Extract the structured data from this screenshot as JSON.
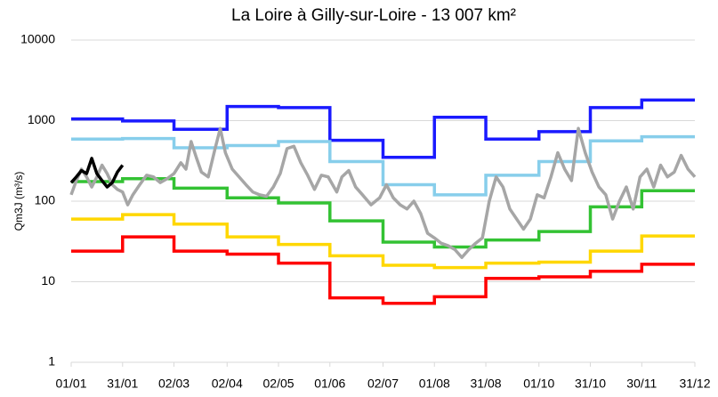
{
  "chart_data": {
    "type": "line",
    "title": "La Loire à Gilly-sur-Loire - 13 007 km²",
    "y_label": "Qm3J (m³/s)",
    "log_y": true,
    "grid": true,
    "xlim": [
      0,
      364
    ],
    "ylim": [
      1,
      10000
    ],
    "yticks": [
      1,
      10,
      100,
      1000,
      10000
    ],
    "xticks": [
      {
        "value": 0,
        "label": "01/01"
      },
      {
        "value": 30,
        "label": "31/01"
      },
      {
        "value": 60,
        "label": "02/03"
      },
      {
        "value": 91,
        "label": "02/04"
      },
      {
        "value": 121,
        "label": "02/05"
      },
      {
        "value": 151,
        "label": "01/06"
      },
      {
        "value": 182,
        "label": "02/07"
      },
      {
        "value": 212,
        "label": "01/08"
      },
      {
        "value": 242,
        "label": "31/08"
      },
      {
        "value": 273,
        "label": "01/10"
      },
      {
        "value": 303,
        "label": "31/10"
      },
      {
        "value": 333,
        "label": "30/11"
      },
      {
        "value": 364,
        "label": "31/12"
      }
    ],
    "step_x": [
      0,
      30,
      60,
      91,
      121,
      151,
      182,
      212,
      242,
      273,
      303,
      333
    ],
    "step_series": [
      {
        "color": "#1a1aff",
        "values": [
          1050,
          990,
          780,
          1500,
          1450,
          570,
          350,
          1100,
          590,
          730,
          1450,
          1800
        ]
      },
      {
        "color": "#87ceeb",
        "values": [
          590,
          600,
          460,
          490,
          550,
          310,
          160,
          120,
          210,
          310,
          560,
          630
        ]
      },
      {
        "color": "#33c233",
        "values": [
          175,
          190,
          145,
          110,
          95,
          57,
          31,
          27,
          33,
          42,
          85,
          135
        ]
      },
      {
        "color": "#ffd700",
        "values": [
          60,
          68,
          52,
          36,
          29,
          21,
          16,
          15,
          17,
          17.5,
          24,
          37
        ]
      },
      {
        "color": "#ff0000",
        "values": [
          24,
          36,
          24,
          22,
          17,
          6.3,
          5.4,
          6.5,
          11,
          11.5,
          13.5,
          16.5
        ]
      }
    ],
    "series": [
      {
        "color": "#a6a6a6",
        "x": [
          0,
          3,
          6,
          9,
          12,
          15,
          18,
          21,
          24,
          27,
          30,
          33,
          36,
          40,
          44,
          48,
          52,
          56,
          60,
          64,
          67,
          70,
          73,
          76,
          80,
          84,
          87,
          90,
          94,
          98,
          102,
          106,
          110,
          114,
          118,
          122,
          126,
          130,
          134,
          138,
          142,
          146,
          150,
          155,
          158,
          162,
          166,
          170,
          175,
          180,
          184,
          188,
          192,
          196,
          200,
          204,
          208,
          212,
          216,
          220,
          224,
          228,
          232,
          236,
          240,
          244,
          248,
          252,
          256,
          260,
          264,
          268,
          272,
          276,
          280,
          284,
          288,
          292,
          296,
          300,
          304,
          308,
          312,
          316,
          320,
          324,
          328,
          332,
          336,
          340,
          344,
          348,
          352,
          356,
          360,
          364
        ],
        "values": [
          120,
          180,
          250,
          200,
          150,
          200,
          280,
          220,
          160,
          140,
          130,
          90,
          120,
          160,
          210,
          200,
          170,
          190,
          220,
          300,
          250,
          550,
          350,
          230,
          200,
          450,
          800,
          400,
          250,
          200,
          160,
          130,
          120,
          115,
          150,
          220,
          450,
          480,
          300,
          210,
          140,
          210,
          200,
          130,
          200,
          240,
          150,
          120,
          90,
          110,
          160,
          110,
          90,
          80,
          100,
          70,
          40,
          35,
          30,
          28,
          25,
          20,
          25,
          30,
          35,
          100,
          200,
          150,
          80,
          60,
          45,
          60,
          120,
          110,
          200,
          400,
          250,
          180,
          800,
          400,
          230,
          150,
          120,
          60,
          100,
          150,
          80,
          200,
          250,
          150,
          280,
          200,
          230,
          370,
          250,
          200
        ]
      },
      {
        "color": "#000000",
        "x": [
          0,
          3,
          6,
          9,
          12,
          15,
          18,
          21,
          24,
          27,
          30
        ],
        "values": [
          170,
          200,
          240,
          220,
          340,
          220,
          180,
          150,
          170,
          230,
          280
        ]
      }
    ]
  }
}
